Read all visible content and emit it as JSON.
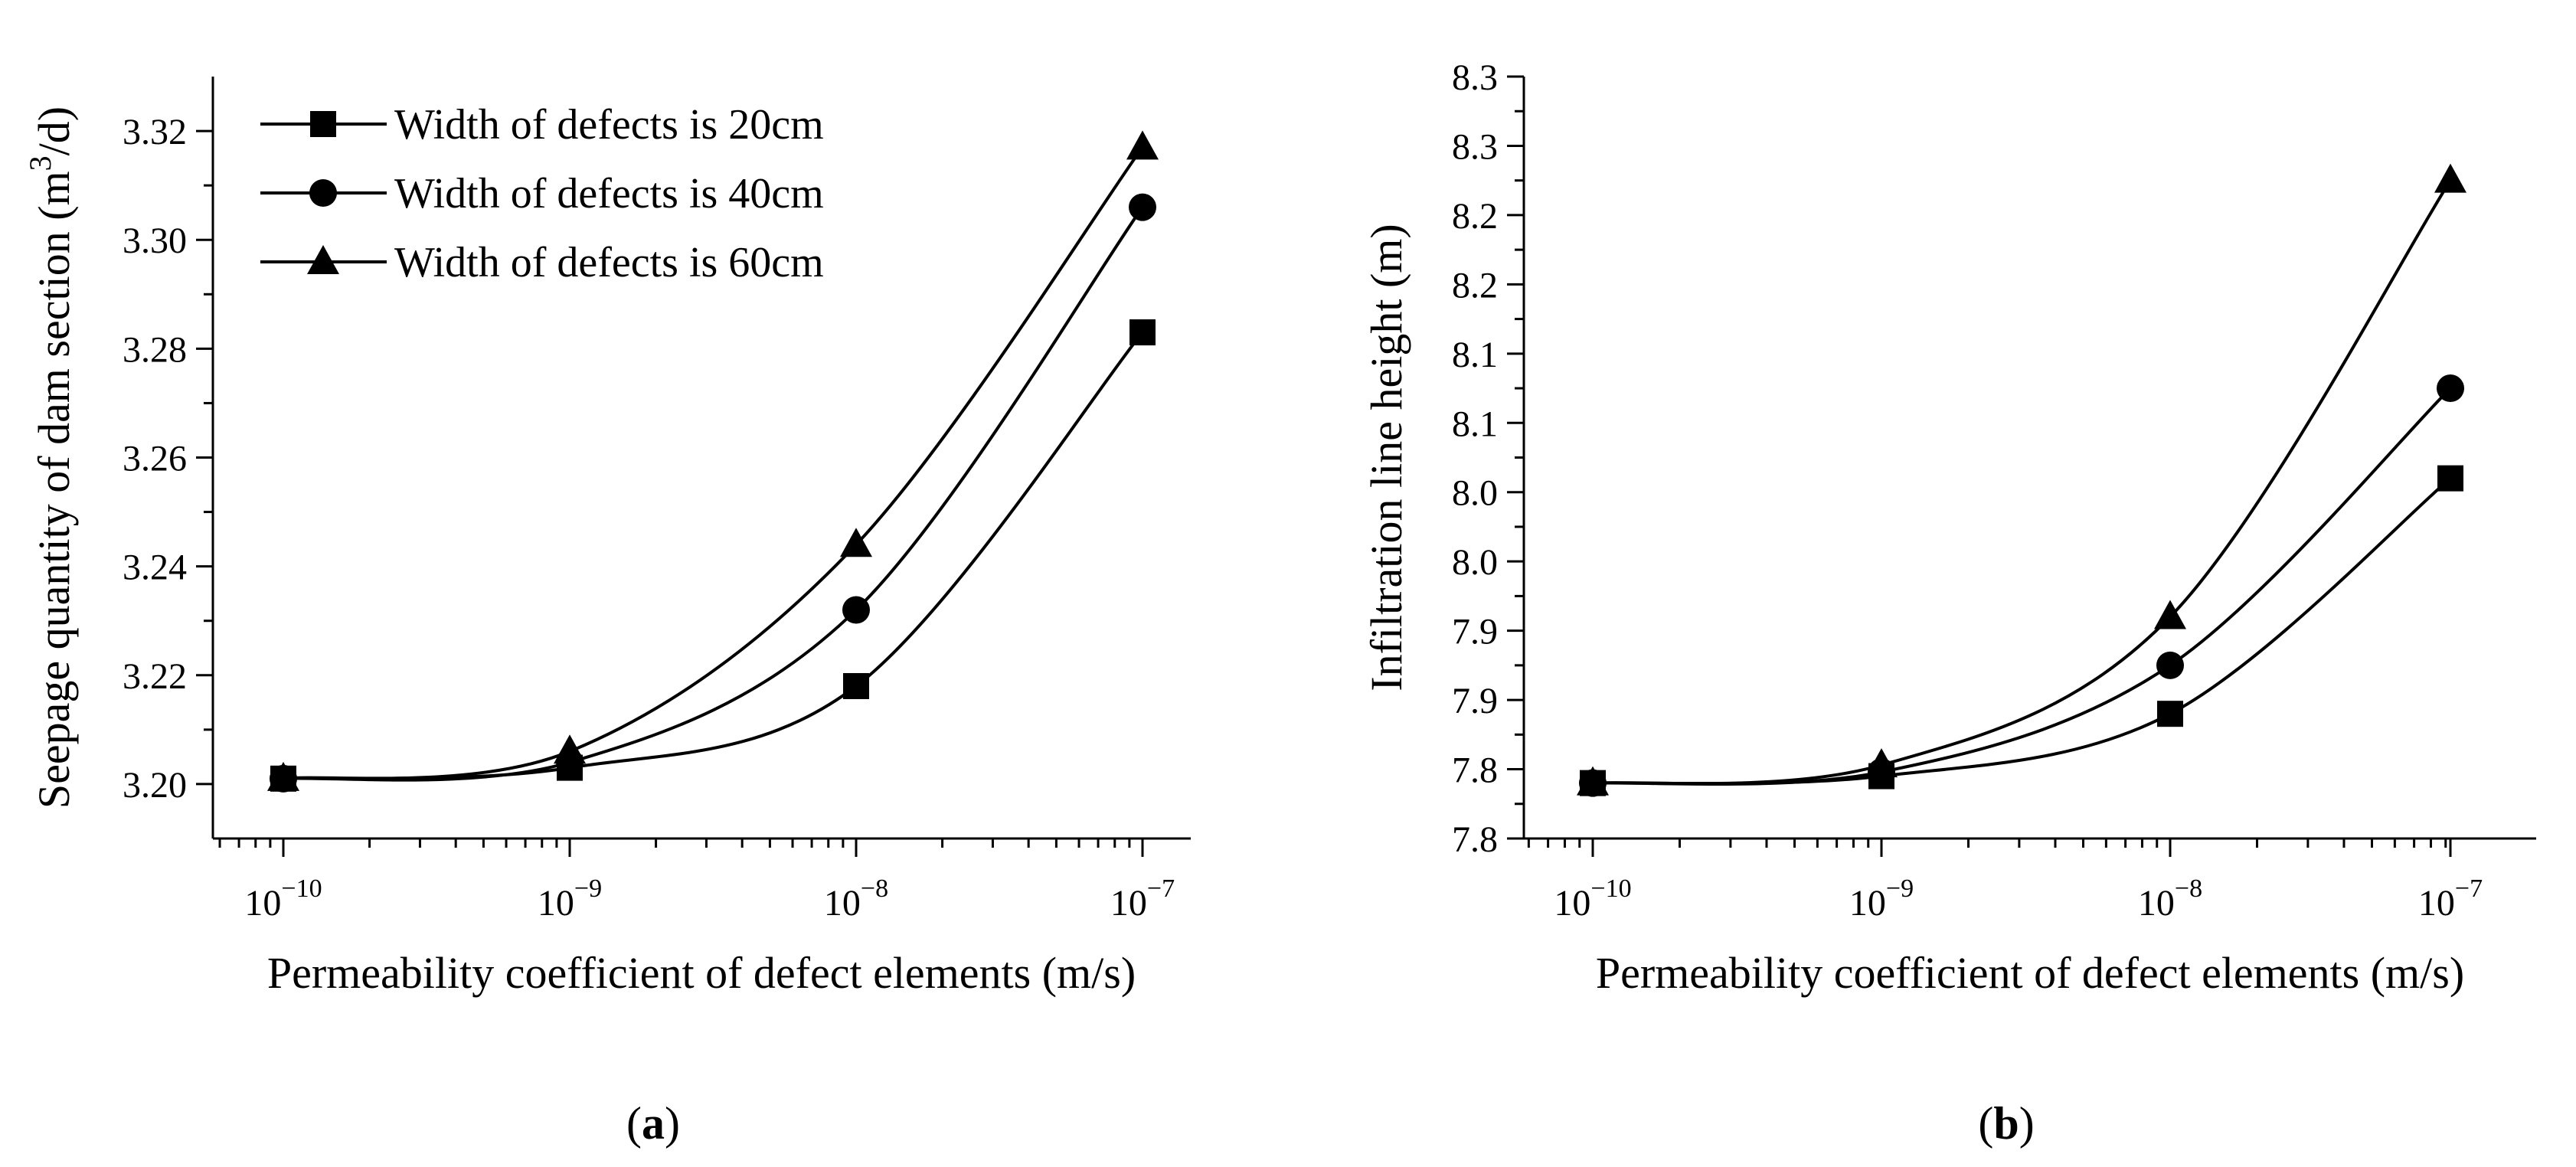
{
  "chart_data": [
    {
      "panel": "a",
      "type": "line",
      "caption": {
        "open": "(",
        "letter": "a",
        "close": ")"
      },
      "xscale": "log",
      "x": [
        1e-10,
        1e-09,
        1e-08,
        1e-07
      ],
      "xtick_labels": [
        {
          "base": "10",
          "exp": "−10"
        },
        {
          "base": "10",
          "exp": "−9"
        },
        {
          "base": "10",
          "exp": "−8"
        },
        {
          "base": "10",
          "exp": "−7"
        }
      ],
      "xlabel": "Permeability coefficient of defect elements (m/s)",
      "ylabel": {
        "before": "Seepage quantity of dam section (m",
        "sup": "3",
        "after": "/d)"
      },
      "ylim": [
        3.19,
        3.33
      ],
      "yticks": [
        3.2,
        3.22,
        3.24,
        3.26,
        3.28,
        3.3,
        3.32
      ],
      "ytick_labels": [
        "3.20",
        "3.22",
        "3.24",
        "3.26",
        "3.28",
        "3.30",
        "3.32"
      ],
      "legend": {
        "position": "top-left"
      },
      "series": [
        {
          "name": "Width of defects is 20cm",
          "marker": "square",
          "values": [
            3.201,
            3.203,
            3.218,
            3.283
          ]
        },
        {
          "name": "Width of defects is 40cm",
          "marker": "circle",
          "values": [
            3.201,
            3.204,
            3.232,
            3.306
          ]
        },
        {
          "name": "Width of defects is 60cm",
          "marker": "triangle",
          "values": [
            3.201,
            3.206,
            3.244,
            3.317
          ]
        }
      ]
    },
    {
      "panel": "b",
      "type": "line",
      "caption": {
        "open": "(",
        "letter": "b",
        "close": ")"
      },
      "xscale": "log",
      "x": [
        1e-10,
        1e-09,
        1e-08,
        1e-07
      ],
      "xtick_labels": [
        {
          "base": "10",
          "exp": "−10"
        },
        {
          "base": "10",
          "exp": "−9"
        },
        {
          "base": "10",
          "exp": "−8"
        },
        {
          "base": "10",
          "exp": "−7"
        }
      ],
      "xlabel": "Permeability coefficient of defect elements (m/s)",
      "ylabel": {
        "before": "Infiltration line height (m)",
        "sup": "",
        "after": ""
      },
      "ylim": [
        7.8,
        8.35
      ],
      "yticks": [
        7.8,
        7.85,
        7.9,
        7.95,
        8.0,
        8.05,
        8.1,
        8.15,
        8.2,
        8.25,
        8.3,
        8.35
      ],
      "ytick_labels": [
        "7.8",
        "7.8",
        "7.9",
        "7.9",
        "8.0",
        "8.0",
        "8.1",
        "8.1",
        "8.2",
        "8.2",
        "8.3",
        "8.3"
      ],
      "series": [
        {
          "name": "Width of defects is 20cm",
          "marker": "square",
          "values": [
            7.84,
            7.845,
            7.89,
            8.06
          ]
        },
        {
          "name": "Width of defects is 40cm",
          "marker": "circle",
          "values": [
            7.84,
            7.848,
            7.925,
            8.125
          ]
        },
        {
          "name": "Width of defects is 60cm",
          "marker": "triangle",
          "values": [
            7.84,
            7.853,
            7.96,
            8.275
          ]
        }
      ]
    }
  ]
}
